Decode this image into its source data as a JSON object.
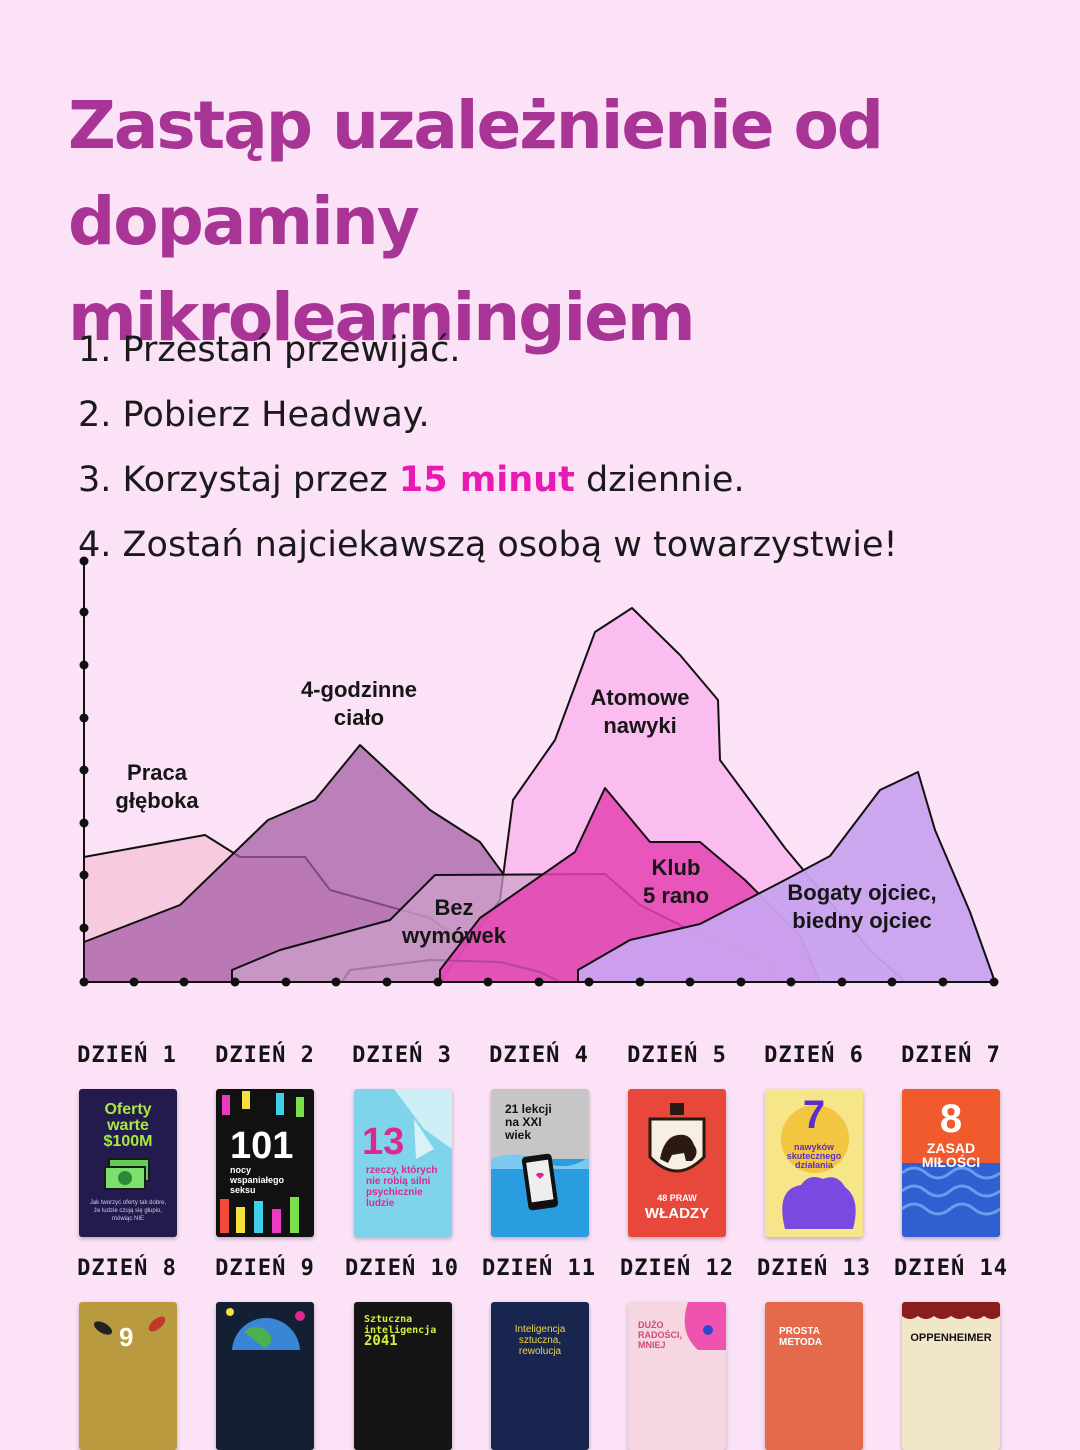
{
  "title": "Zastąp uzależnienie od dopaminy mikrolearningiem",
  "steps": [
    {
      "num": "1.",
      "before": "Przestań przewijać.",
      "highlight": "",
      "after": ""
    },
    {
      "num": "2.",
      "before": "Pobierz Headway.",
      "highlight": "",
      "after": ""
    },
    {
      "num": "3.",
      "before": "Korzystaj przez ",
      "highlight": "15 minut",
      "after": " dziennie."
    },
    {
      "num": "4.",
      "before": "Zostań najciekawszą osobą w towarzystwie!",
      "highlight": "",
      "after": ""
    }
  ],
  "colors": {
    "title": "#a83496",
    "highlight": "#e91ab3",
    "background": "#fbe2f6",
    "mountain_praca": "#f7c8de",
    "mountain_cialo": "#a65ea5",
    "mountain_atomowe": "#fbb9ef",
    "mountain_bez": "#cfa2cc",
    "mountain_klub": "#e443b2",
    "mountain_bogaty": "#c9a3ef"
  },
  "chart_labels": {
    "praca": [
      "Praca",
      "głęboka"
    ],
    "cialo": [
      "4-godzinne",
      "ciało"
    ],
    "atomowe": [
      "Atomowe",
      "nawyki"
    ],
    "bez": [
      "Bez",
      "wymówek"
    ],
    "klub": [
      "Klub",
      "5 rano"
    ],
    "bogaty": [
      "Bogaty ojciec,",
      "biedny ojciec"
    ]
  },
  "days": [
    {
      "label": "DZIEŃ 1",
      "book": {
        "lines": [
          "Oferty",
          "warte",
          "$100M"
        ],
        "sub": "Jak tworzyć oferty tak dobre, że ludzie czują się głupio, mówiąc NIE",
        "bg": "#231a4d",
        "fg": "#a8e843",
        "icon": "money-icon"
      }
    },
    {
      "label": "DZIEŃ 2",
      "book": {
        "lines": [
          "101"
        ],
        "sub": "nocy wspaniałego seksu",
        "bg": "#111111",
        "fg": "#ffffff",
        "icon": "candles-icon"
      }
    },
    {
      "label": "DZIEŃ 3",
      "book": {
        "lines": [
          "13"
        ],
        "sub": "rzeczy, których nie robią silni psychicznie ludzie",
        "bg": "#7fd3ea",
        "fg": "#e0288c",
        "icon": "shatter-icon"
      }
    },
    {
      "label": "DZIEŃ 4",
      "book": {
        "lines": [
          "21 lekcji",
          "na XXI",
          "wiek"
        ],
        "sub": "",
        "bg": "#c6c6c6",
        "fg": "#111111",
        "icon": "phone-icon"
      }
    },
    {
      "label": "DZIEŃ 5",
      "book": {
        "lines": [
          "48 PRAW"
        ],
        "sub": "WŁADZY",
        "bg": "#e8473b",
        "fg": "#ffffff",
        "icon": "lion-icon"
      }
    },
    {
      "label": "DZIEŃ 6",
      "book": {
        "lines": [
          "7"
        ],
        "sub": "nawyków skutecznego działania",
        "bg": "#f7e58a",
        "fg": "#5a2fc9",
        "icon": "gear-hand-icon"
      }
    },
    {
      "label": "DZIEŃ 7",
      "book": {
        "lines": [
          "8",
          "ZASAD",
          "MIŁOŚCI"
        ],
        "sub": "",
        "bg": "#f05a2c",
        "fg": "#ffffff",
        "icon": "waves-icon"
      }
    },
    {
      "label": "DZIEŃ 8",
      "book": {
        "lines": [
          "9"
        ],
        "sub": "",
        "bg": "#b99a3e",
        "fg": "#ffffff",
        "icon": "fish-icon"
      }
    },
    {
      "label": "DZIEŃ 9",
      "book": {
        "lines": [
          ""
        ],
        "sub": "",
        "bg": "#132033",
        "fg": "#ffffff",
        "icon": "globe-icon"
      }
    },
    {
      "label": "DZIEŃ 10",
      "book": {
        "lines": [
          "Sztuczna",
          "inteligencja",
          "2041"
        ],
        "sub": "",
        "bg": "#151515",
        "fg": "#d6ef3e",
        "icon": "circuit-icon"
      }
    },
    {
      "label": "DZIEŃ 11",
      "book": {
        "lines": [
          "Inteligencja",
          "sztuczna,",
          "rewolucja"
        ],
        "sub": "",
        "bg": "#17254f",
        "fg": "#f0d64a",
        "icon": "none"
      }
    },
    {
      "label": "DZIEŃ 12",
      "book": {
        "lines": [
          "DUŻO",
          "RADOŚCI,",
          "MNIEJ"
        ],
        "sub": "",
        "bg": "#f6d6e0",
        "fg": "#d04a7a",
        "icon": "face-icon"
      }
    },
    {
      "label": "DZIEŃ 13",
      "book": {
        "lines": [
          "PROSTA",
          "METODA"
        ],
        "sub": "",
        "bg": "#e56a4c",
        "fg": "#ffffff",
        "icon": "none"
      }
    },
    {
      "label": "DZIEŃ 14",
      "book": {
        "lines": [
          "OPPENHEIMER"
        ],
        "sub": "",
        "bg": "#f2e6c9",
        "fg": "#111111",
        "icon": "curtain-icon"
      }
    }
  ]
}
